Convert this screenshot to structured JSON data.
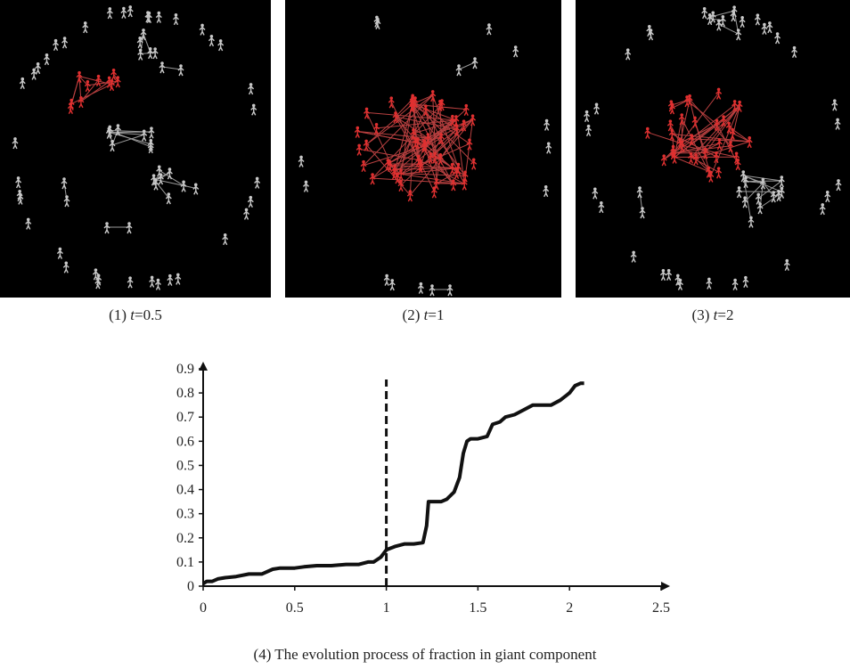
{
  "panels": [
    {
      "label_prefix": "(1) ",
      "var": "t",
      "label_suffix": "=0.5"
    },
    {
      "label_prefix": "(2) ",
      "var": "t",
      "label_suffix": "=1"
    },
    {
      "label_prefix": "(3) ",
      "var": "t",
      "label_suffix": "=2"
    }
  ],
  "colors": {
    "panel_bg": "#000000",
    "giant_node": "#e03030",
    "other_node": "#c8c8c8",
    "curve": "#111111"
  },
  "chart_data": {
    "type": "line",
    "caption": "(4) The evolution process of fraction in giant component",
    "xlim": [
      0,
      2.5
    ],
    "ylim": [
      0,
      0.9
    ],
    "xticks": [
      0,
      0.5,
      1,
      1.5,
      2,
      2.5
    ],
    "xtick_labels": [
      "0",
      "0.5",
      "1",
      "1.5",
      "2",
      "2.5"
    ],
    "yticks": [
      0,
      0.1,
      0.2,
      0.3,
      0.4,
      0.5,
      0.6,
      0.7,
      0.8,
      0.9
    ],
    "ytick_labels": [
      "0",
      "0.1",
      "0.2",
      "0.3",
      "0.4",
      "0.5",
      "0.6",
      "0.7",
      "0.8",
      "0.9"
    ],
    "vline_x": 1,
    "x": [
      0,
      0.02,
      0.05,
      0.08,
      0.12,
      0.18,
      0.25,
      0.32,
      0.38,
      0.42,
      0.5,
      0.55,
      0.62,
      0.7,
      0.78,
      0.85,
      0.9,
      0.93,
      0.97,
      1.0,
      1.05,
      1.1,
      1.15,
      1.2,
      1.22,
      1.23,
      1.25,
      1.3,
      1.33,
      1.37,
      1.4,
      1.42,
      1.44,
      1.46,
      1.5,
      1.55,
      1.58,
      1.62,
      1.65,
      1.7,
      1.75,
      1.8,
      1.85,
      1.9,
      1.95,
      2.0,
      2.03,
      2.06,
      2.08
    ],
    "y": [
      0.01,
      0.02,
      0.02,
      0.03,
      0.035,
      0.04,
      0.05,
      0.05,
      0.07,
      0.075,
      0.075,
      0.08,
      0.085,
      0.085,
      0.09,
      0.09,
      0.1,
      0.1,
      0.12,
      0.15,
      0.165,
      0.175,
      0.175,
      0.18,
      0.25,
      0.35,
      0.35,
      0.35,
      0.36,
      0.39,
      0.45,
      0.55,
      0.6,
      0.61,
      0.61,
      0.62,
      0.67,
      0.68,
      0.7,
      0.71,
      0.73,
      0.75,
      0.75,
      0.75,
      0.77,
      0.8,
      0.83,
      0.84,
      0.84
    ]
  }
}
